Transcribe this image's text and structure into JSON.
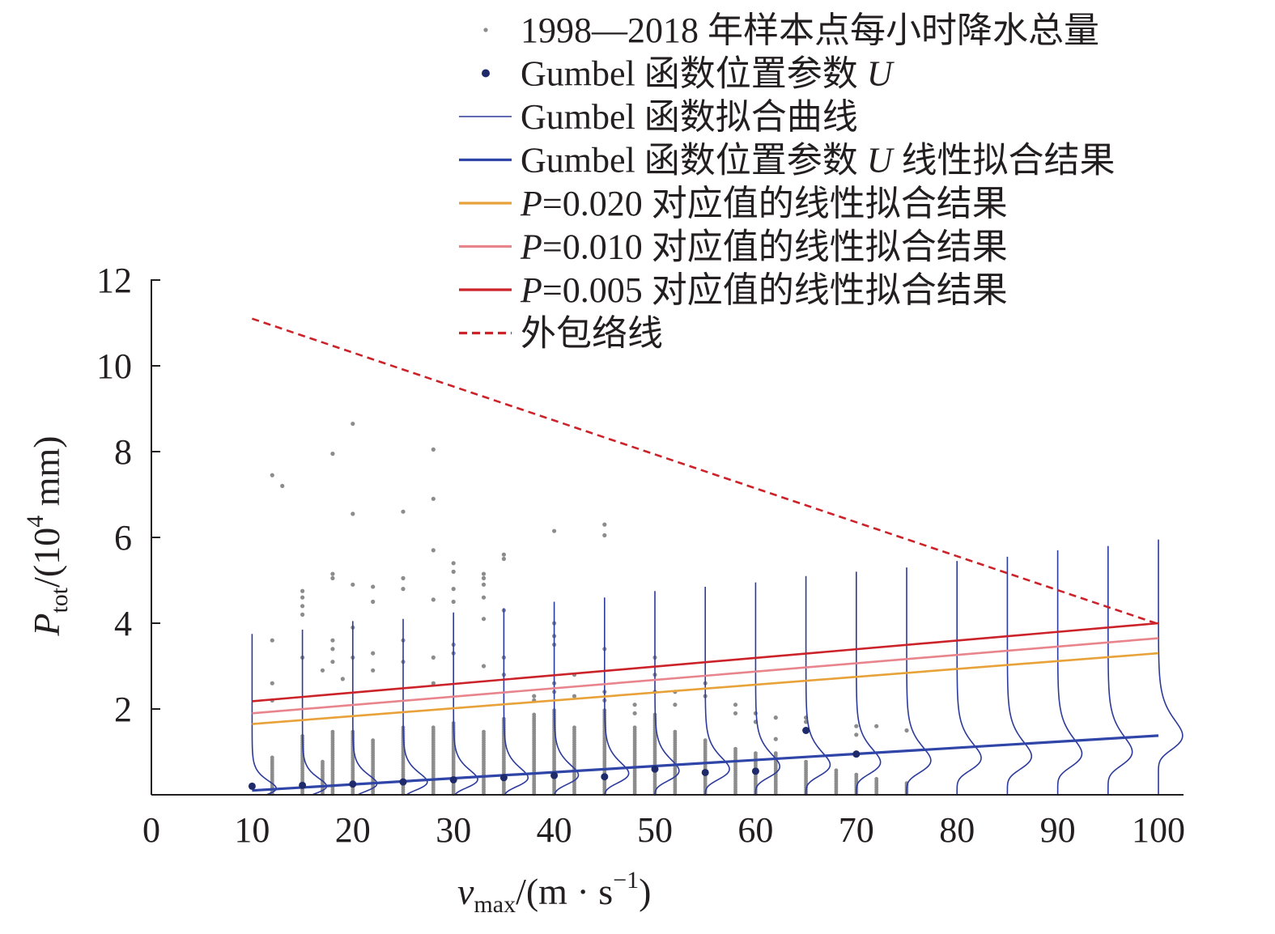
{
  "chart_data": {
    "type": "scatter",
    "title": "",
    "xlabel": {
      "main": "v",
      "sub": "max",
      "rest": "/(m · s",
      "sup": "−1",
      "close": ")"
    },
    "ylabel": {
      "main": "P",
      "sub": "tot",
      "rest": "/(10",
      "sup": "4",
      "close": " mm)"
    },
    "xlim": [
      0,
      100
    ],
    "ylim": [
      0,
      12
    ],
    "x_ticks": [
      0,
      10,
      20,
      30,
      40,
      50,
      60,
      70,
      80,
      90,
      100
    ],
    "x_tick_labels": [
      "0",
      "10",
      "20",
      "30",
      "40",
      "50",
      "60",
      "70",
      "80",
      "90",
      "100"
    ],
    "y_ticks": [
      2,
      4,
      6,
      8,
      10,
      12
    ],
    "y_tick_labels": [
      "2",
      "4",
      "6",
      "8",
      "10",
      "12"
    ],
    "grid": false,
    "legend": {
      "placement": "top-right",
      "entries": [
        {
          "key": "samples",
          "label": "1998—2018 年样本点每小时降水总量",
          "marker": "dot",
          "color": "#8c8c8c"
        },
        {
          "key": "location_U",
          "label_prefix": "Gumbel 函数位置参数 ",
          "label_var": "U",
          "label_suffix": "",
          "marker": "dot-large",
          "color": "#1f2a6b"
        },
        {
          "key": "gumbel_curve",
          "label": "Gumbel 函数拟合曲线",
          "marker": "line-thin",
          "color": "#2b3a9c"
        },
        {
          "key": "U_fit",
          "label_prefix": "Gumbel 函数位置参数 ",
          "label_var": "U",
          "label_suffix": " 线性拟合结果",
          "marker": "line",
          "color": "#2f45a8"
        },
        {
          "key": "p020",
          "label_prefix": "",
          "label_var": "P",
          "label_suffix": "=0.020 对应值的线性拟合结果",
          "marker": "line",
          "color": "#e8a23a"
        },
        {
          "key": "p010",
          "label_prefix": "",
          "label_var": "P",
          "label_suffix": "=0.010 对应值的线性拟合结果",
          "marker": "line",
          "color": "#e8848c"
        },
        {
          "key": "p005",
          "label_prefix": "",
          "label_var": "P",
          "label_suffix": "=0.005 对应值的线性拟合结果",
          "marker": "line",
          "color": "#cc2229"
        },
        {
          "key": "envelope",
          "label": "外包络线",
          "marker": "dashed",
          "color": "#cc2229"
        }
      ]
    },
    "series": [
      {
        "key": "U_fit",
        "type": "line",
        "color": "#2f45a8",
        "x": [
          10,
          100
        ],
        "y": [
          0.1,
          1.38
        ]
      },
      {
        "key": "p020",
        "type": "line",
        "color": "#e8a23a",
        "x": [
          10,
          100
        ],
        "y": [
          1.65,
          3.3
        ]
      },
      {
        "key": "p010",
        "type": "line",
        "color": "#e8848c",
        "x": [
          10,
          100
        ],
        "y": [
          1.9,
          3.65
        ]
      },
      {
        "key": "p005",
        "type": "line",
        "color": "#cc2229",
        "x": [
          10,
          100
        ],
        "y": [
          2.18,
          4.0
        ]
      },
      {
        "key": "envelope",
        "type": "line",
        "dashed": true,
        "color": "#cc2229",
        "x": [
          10,
          100
        ],
        "y": [
          11.1,
          3.98
        ]
      }
    ],
    "location_U_points": {
      "x": [
        10,
        15,
        20,
        25,
        30,
        35,
        40,
        45,
        50,
        55,
        60,
        65,
        70
      ],
      "y": [
        0.2,
        0.22,
        0.25,
        0.3,
        0.35,
        0.4,
        0.45,
        0.42,
        0.6,
        0.52,
        0.55,
        1.5,
        0.95
      ]
    },
    "gumbel_curves": {
      "x_base": [
        10,
        15,
        20,
        25,
        30,
        35,
        40,
        45,
        50,
        55,
        60,
        65,
        70,
        75,
        80,
        85,
        90,
        95,
        100
      ],
      "mode": [
        0.15,
        0.2,
        0.26,
        0.3,
        0.36,
        0.4,
        0.46,
        0.5,
        0.56,
        0.6,
        0.66,
        0.7,
        0.76,
        0.8,
        0.86,
        0.9,
        0.96,
        1.0,
        1.38
      ],
      "top": [
        3.75,
        3.85,
        4.05,
        4.1,
        4.25,
        4.35,
        4.5,
        4.6,
        4.75,
        4.85,
        4.95,
        5.1,
        5.2,
        5.3,
        5.45,
        5.55,
        5.7,
        5.8,
        5.95
      ]
    },
    "sample_columns": {
      "x": [
        12,
        15,
        17,
        18,
        20,
        22,
        25,
        28,
        30,
        33,
        35,
        38,
        40,
        42,
        45,
        48,
        50,
        52,
        55,
        58,
        60,
        62,
        65,
        68,
        70,
        72,
        75
      ],
      "dense_max": [
        0.9,
        1.4,
        0.8,
        1.5,
        1.5,
        1.3,
        1.6,
        1.6,
        1.7,
        1.5,
        1.8,
        1.9,
        2.0,
        1.6,
        2.0,
        1.6,
        1.9,
        1.5,
        1.3,
        1.1,
        1.0,
        1.0,
        0.8,
        0.6,
        0.5,
        0.4,
        0.3
      ]
    },
    "sample_outliers": {
      "x": [
        12,
        12,
        12,
        12,
        13,
        15,
        15,
        15,
        15,
        15,
        17,
        18,
        18,
        18,
        18,
        18,
        18,
        19,
        20,
        20,
        20,
        20,
        20,
        22,
        22,
        22,
        22,
        25,
        25,
        25,
        25,
        25,
        28,
        28,
        28,
        28,
        28,
        28,
        30,
        30,
        30,
        30,
        30,
        30,
        33,
        33,
        33,
        33,
        33,
        33,
        35,
        35,
        35,
        35,
        35,
        38,
        38,
        40,
        40,
        40,
        40,
        40,
        40,
        42,
        42,
        45,
        45,
        45,
        45,
        45,
        48,
        48,
        50,
        50,
        50,
        52,
        52,
        55,
        55,
        58,
        58,
        60,
        60,
        62,
        62,
        65,
        65,
        70,
        70,
        72,
        75
      ],
      "y": [
        7.45,
        3.6,
        2.6,
        2.2,
        7.2,
        4.75,
        4.6,
        4.4,
        4.2,
        3.2,
        2.9,
        7.95,
        5.15,
        5.05,
        3.6,
        3.4,
        3.1,
        2.7,
        8.65,
        6.55,
        4.9,
        3.9,
        3.2,
        4.85,
        4.5,
        3.3,
        2.9,
        6.6,
        5.05,
        4.8,
        3.6,
        3.1,
        8.05,
        6.9,
        5.7,
        4.55,
        3.2,
        2.6,
        5.4,
        5.2,
        4.8,
        4.5,
        3.5,
        3.3,
        5.15,
        5.05,
        4.9,
        4.6,
        4.1,
        3.0,
        5.6,
        5.5,
        4.3,
        3.2,
        2.8,
        2.3,
        2.2,
        6.15,
        4.0,
        3.7,
        3.5,
        2.6,
        2.4,
        2.8,
        2.3,
        6.3,
        6.05,
        3.4,
        2.4,
        2.2,
        2.1,
        1.9,
        3.2,
        2.8,
        2.4,
        2.4,
        2.1,
        2.6,
        2.3,
        2.1,
        1.9,
        1.9,
        1.7,
        1.8,
        1.3,
        1.8,
        1.7,
        1.6,
        1.4,
        1.6,
        1.5
      ]
    }
  }
}
